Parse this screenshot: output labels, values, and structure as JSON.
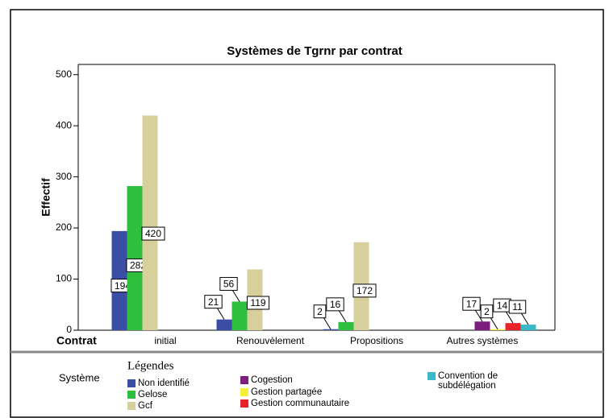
{
  "chart_data": {
    "type": "bar",
    "title": "Systèmes de Tgrnr par contrat",
    "y_label": "Effectif",
    "x_label": "Contrat",
    "legend_title": "Légendes",
    "legend_label": "Système",
    "categories": [
      "initial",
      "Renouvèlement",
      "Propositions",
      "Autres systèmes"
    ],
    "series": [
      {
        "name": "Non identifié",
        "color": "#3a4ea6",
        "values": [
          194,
          21,
          2,
          null
        ]
      },
      {
        "name": "Gelose",
        "color": "#2fbf3f",
        "values": [
          282,
          56,
          16,
          null
        ]
      },
      {
        "name": "Gcf",
        "color": "#d8d09c",
        "values": [
          420,
          119,
          172,
          null
        ]
      },
      {
        "name": "Cogestion",
        "color": "#7c1f7c",
        "values": [
          null,
          null,
          null,
          17
        ]
      },
      {
        "name": "Gestion partagée",
        "color": "#f4ef3a",
        "values": [
          null,
          null,
          null,
          2
        ]
      },
      {
        "name": "Gestion communautaire",
        "color": "#e8242b",
        "values": [
          null,
          null,
          null,
          14
        ]
      },
      {
        "name": "Convention de subdélégation",
        "color": "#3bb9c9",
        "values": [
          null,
          null,
          null,
          11
        ]
      }
    ],
    "ylim": [
      0,
      520
    ],
    "yticks": [
      0,
      100,
      200,
      300,
      400,
      500
    ]
  }
}
